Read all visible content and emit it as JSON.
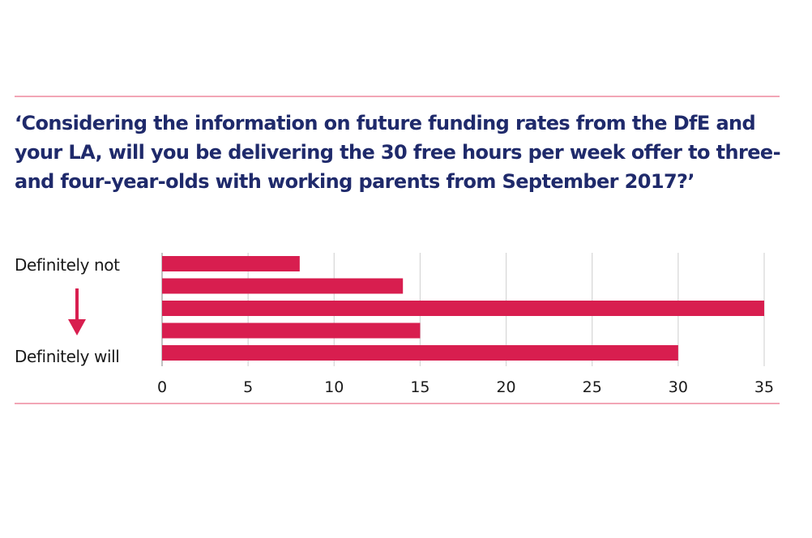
{
  "chart_data": {
    "type": "bar",
    "orientation": "horizontal",
    "title": "‘Considering the information on future funding rates from the DfE and your LA, will you be delivering the 30 free hours per week offer to three- and four-year-olds with working parents from September 2017?’",
    "categories": [
      "Definitely not",
      "",
      "",
      "",
      "Definitely will"
    ],
    "values": [
      8,
      14,
      35,
      15,
      30
    ],
    "xlim": [
      0,
      35
    ],
    "xticks": [
      0,
      5,
      10,
      15,
      20,
      25,
      30,
      35
    ],
    "xlabel": "",
    "ylabel": "",
    "grid": true,
    "bar_color": "#d81e4f",
    "title_color": "#1f2a6b",
    "rule_color": "#f2a6b6",
    "scale_labels": {
      "top": "Definitely not",
      "bottom": "Definitely will"
    },
    "scale_icon": "down-arrow-icon"
  }
}
